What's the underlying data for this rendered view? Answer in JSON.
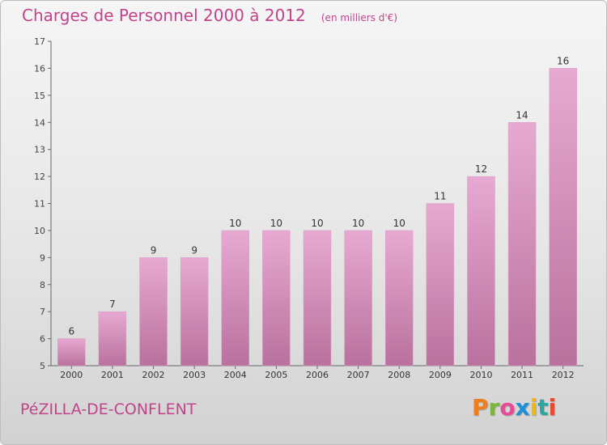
{
  "header": {
    "title": "Charges de Personnel 2000 à 2012",
    "unit": "(en milliers d'€)"
  },
  "footer": {
    "commune": "PéZILLA-DE-CONFLENT",
    "logo_text": "Proxiti",
    "logo_colors": [
      "#f07d1a",
      "#7bb83a",
      "#e84a9a",
      "#1f8fd6",
      "#f5b800",
      "#2aa7a0",
      "#e84a2e"
    ]
  },
  "colors": {
    "bar_light": "#e7a9d2",
    "bar_dark": "#b9719e",
    "accent": "#c0448a"
  },
  "chart_data": {
    "type": "bar",
    "title": "Charges de Personnel 2000 à 2012",
    "subtitle": "(en milliers d'€)",
    "xlabel": "",
    "ylabel": "",
    "categories": [
      "2000",
      "2001",
      "2002",
      "2003",
      "2004",
      "2005",
      "2006",
      "2007",
      "2008",
      "2009",
      "2010",
      "2011",
      "2012"
    ],
    "values": [
      6,
      7,
      9,
      9,
      10,
      10,
      10,
      10,
      10,
      11,
      12,
      14,
      16
    ],
    "data_labels": [
      "6",
      "7",
      "9",
      "9",
      "10",
      "10",
      "10",
      "10",
      "10",
      "11",
      "12",
      "14",
      "16"
    ],
    "ylim": [
      5,
      17
    ],
    "yticks": [
      5,
      6,
      7,
      8,
      9,
      10,
      11,
      12,
      13,
      14,
      15,
      16,
      17
    ],
    "grid": false,
    "legend": "none"
  }
}
